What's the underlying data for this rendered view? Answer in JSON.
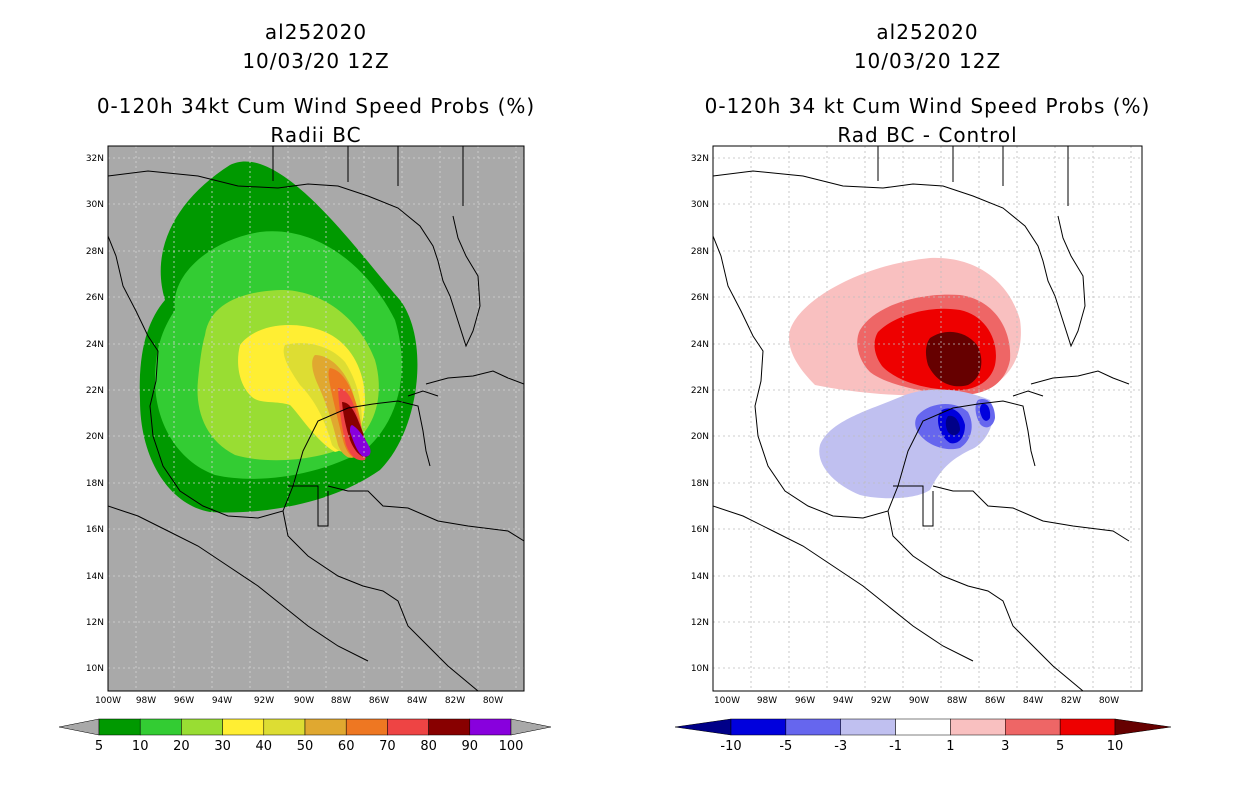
{
  "left_panel": {
    "storm_id": "al252020",
    "datetime": "10/03/20 12Z",
    "title": "0-120h 34kt Cum Wind Speed Probs (%)",
    "subtitle": "Radii BC",
    "background": "#a9a9a9",
    "lat_ticks": [
      "32N",
      "30N",
      "28N",
      "26N",
      "24N",
      "22N",
      "20N",
      "18N",
      "16N",
      "14N",
      "12N",
      "10N"
    ],
    "lon_ticks": [
      "100W",
      "98W",
      "96W",
      "94W",
      "92W",
      "90W",
      "88W",
      "86W",
      "84W",
      "82W",
      "80W"
    ],
    "colorbar": {
      "colors": [
        "#009900",
        "#33cc33",
        "#99dd33",
        "#ffee33",
        "#dddd33",
        "#e0a830",
        "#ee7722",
        "#ee4444",
        "#880000",
        "#8800dd"
      ],
      "under_color": "#a9a9a9",
      "over_color": "#a9a9a9",
      "labels": [
        "5",
        "10",
        "20",
        "30",
        "40",
        "50",
        "60",
        "70",
        "80",
        "90",
        "100"
      ]
    }
  },
  "right_panel": {
    "storm_id": "al252020",
    "datetime": "10/03/20 12Z",
    "title": "0-120h 34 kt Cum Wind Speed Probs (%)",
    "subtitle": "Rad BC - Control",
    "background": "#ffffff",
    "lat_ticks": [
      "32N",
      "30N",
      "28N",
      "26N",
      "24N",
      "22N",
      "20N",
      "18N",
      "16N",
      "14N",
      "12N",
      "10N"
    ],
    "lon_ticks": [
      "100W",
      "98W",
      "96W",
      "94W",
      "92W",
      "90W",
      "88W",
      "86W",
      "84W",
      "82W",
      "80W"
    ],
    "colorbar": {
      "colors": [
        "#0000dd",
        "#6666ee",
        "#c0c0f0",
        "#ffffff",
        "#f9c0c0",
        "#ee6666",
        "#ee0000"
      ],
      "under_color": "#000088",
      "over_color": "#660000",
      "labels": [
        "-10",
        "-5",
        "-3",
        "-1",
        "1",
        "3",
        "5",
        "10"
      ]
    }
  }
}
